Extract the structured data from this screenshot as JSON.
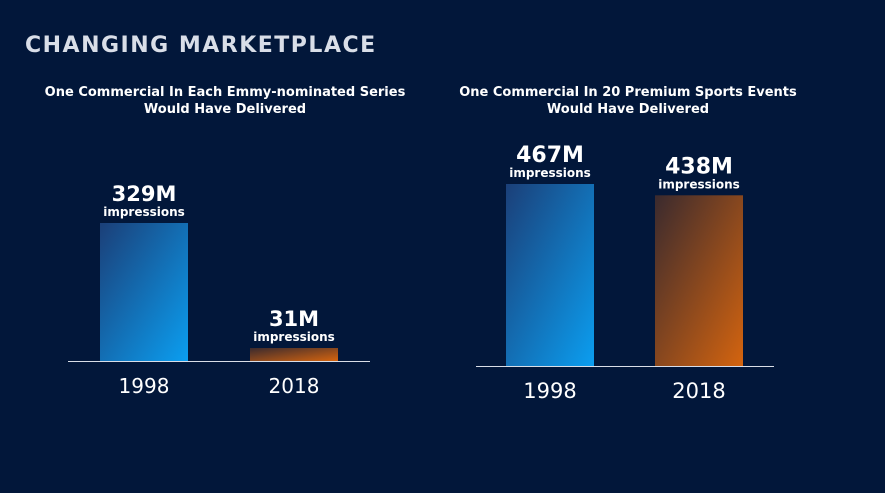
{
  "page": {
    "title": "CHANGING MARKETPLACE"
  },
  "colors": {
    "background": "#02173a",
    "blue_dark": "#1b3f78",
    "blue_light": "#0b9ef0",
    "orange_dark": "#3a2a2e",
    "orange_light": "#d4640f",
    "baseline": "#d9dee8"
  },
  "chart_data": [
    {
      "type": "bar",
      "title_line1": "One Commercial In Each Emmy-nominated Series",
      "title_line2": "Would Have Delivered",
      "categories": [
        "1998",
        "2018"
      ],
      "values": [
        329,
        31
      ],
      "value_labels": [
        "329M",
        "31M"
      ],
      "unit_label": "impressions",
      "ylim": [
        0,
        329
      ],
      "bar_styles": [
        "blue",
        "orange"
      ]
    },
    {
      "type": "bar",
      "title_line1": "One Commercial In 20 Premium Sports Events",
      "title_line2": "Would Have Delivered",
      "categories": [
        "1998",
        "2018"
      ],
      "values": [
        467,
        438
      ],
      "value_labels": [
        "467M",
        "438M"
      ],
      "unit_label": "impressions",
      "ylim": [
        0,
        467
      ],
      "bar_styles": [
        "blue",
        "orange"
      ]
    }
  ]
}
